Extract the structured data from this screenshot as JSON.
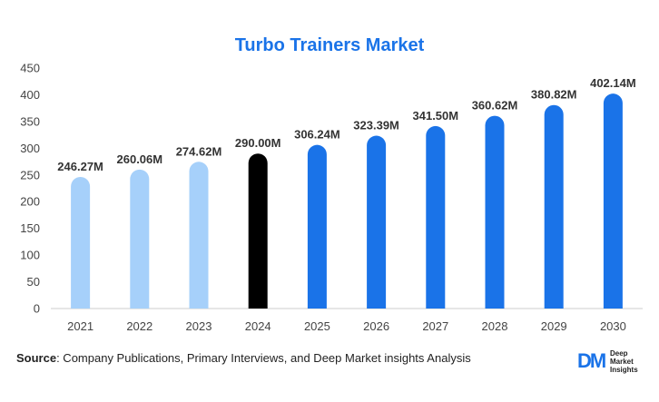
{
  "chart_data": {
    "type": "bar",
    "title": "Turbo Trainers Market",
    "categories": [
      "2021",
      "2022",
      "2023",
      "2024",
      "2025",
      "2026",
      "2027",
      "2028",
      "2029",
      "2030"
    ],
    "values": [
      246.27,
      260.06,
      274.62,
      290.0,
      306.24,
      323.39,
      341.5,
      360.62,
      380.82,
      402.14
    ],
    "data_labels": [
      "246.27M",
      "260.06M",
      "274.62M",
      "290.00M",
      "306.24M",
      "323.39M",
      "341.50M",
      "360.62M",
      "380.82M",
      "402.14M"
    ],
    "bar_colors": [
      "#a6d0fa",
      "#a6d0fa",
      "#a6d0fa",
      "#000000",
      "#1a73e8",
      "#1a73e8",
      "#1a73e8",
      "#1a73e8",
      "#1a73e8",
      "#1a73e8"
    ],
    "ylim": [
      0,
      450
    ],
    "yticks": [
      0,
      50,
      100,
      150,
      200,
      250,
      300,
      350,
      400,
      450
    ],
    "grid": false,
    "legend": "none"
  },
  "footer": {
    "source_label": "Source",
    "source_text": ": Company Publications, Primary Interviews, and Deep Market insights Analysis"
  },
  "logo": {
    "mark": "DM",
    "line1": "Deep",
    "line2": "Market",
    "line3": "Insights"
  },
  "colors": {
    "title": "#1a73e8",
    "historic": "#a6d0fa",
    "base_year": "#000000",
    "forecast": "#1a73e8"
  }
}
